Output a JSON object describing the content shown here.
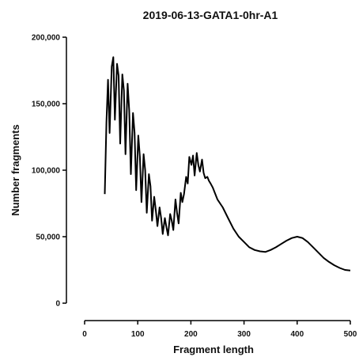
{
  "chart_data": {
    "type": "line",
    "title": "2019-06-13-GATA1-0hr-A1",
    "xlabel": "Fragment length",
    "ylabel": "Number fragments",
    "xlim": [
      0,
      500
    ],
    "ylim": [
      0,
      200000
    ],
    "x_ticks": [
      0,
      100,
      200,
      300,
      400,
      500
    ],
    "y_ticks": [
      0,
      50000,
      100000,
      150000,
      200000
    ],
    "x_tick_labels": [
      "0",
      "100",
      "200",
      "300",
      "400",
      "500"
    ],
    "y_tick_labels": [
      "0",
      "50,000",
      "100,000",
      "150,000",
      "200,000"
    ],
    "grid": false,
    "line_color": "#000000",
    "series": [
      {
        "x": [
          38,
          41,
          44,
          47,
          51,
          54,
          57,
          61,
          64,
          67,
          71,
          74,
          77,
          81,
          84,
          87,
          91,
          94,
          97,
          101,
          104,
          107,
          111,
          114,
          117,
          121,
          124,
          127,
          131,
          134,
          137,
          141,
          144,
          147,
          151,
          154,
          157,
          161,
          164,
          167,
          171,
          174,
          177,
          181,
          184,
          187,
          191,
          194,
          197,
          201,
          204,
          207,
          211,
          214,
          217,
          221,
          224,
          227,
          231,
          234,
          237,
          241,
          244,
          250,
          260,
          270,
          280,
          290,
          300,
          310,
          320,
          330,
          340,
          350,
          360,
          370,
          380,
          390,
          400,
          410,
          420,
          430,
          440,
          450,
          460,
          470,
          480,
          490,
          500
        ],
        "y": [
          82000,
          136000,
          168000,
          128000,
          178000,
          185000,
          138000,
          180000,
          171000,
          120000,
          172000,
          160000,
          112000,
          165000,
          145000,
          97000,
          143000,
          128000,
          85000,
          126000,
          110000,
          76000,
          112000,
          100000,
          68000,
          97000,
          88000,
          62000,
          80000,
          70000,
          58000,
          72000,
          64000,
          52000,
          64000,
          57000,
          51000,
          67000,
          62000,
          55000,
          78000,
          68000,
          60000,
          83000,
          76000,
          82000,
          95000,
          90000,
          110000,
          104000,
          111000,
          96000,
          113000,
          104000,
          99000,
          108000,
          98000,
          94000,
          95000,
          92000,
          90000,
          87000,
          84000,
          78000,
          72000,
          64000,
          56000,
          50000,
          46000,
          42000,
          40000,
          39000,
          38500,
          40000,
          42000,
          44500,
          47000,
          49000,
          50000,
          49000,
          46000,
          42000,
          38000,
          34000,
          31000,
          28500,
          26500,
          25000,
          24500
        ]
      }
    ]
  }
}
